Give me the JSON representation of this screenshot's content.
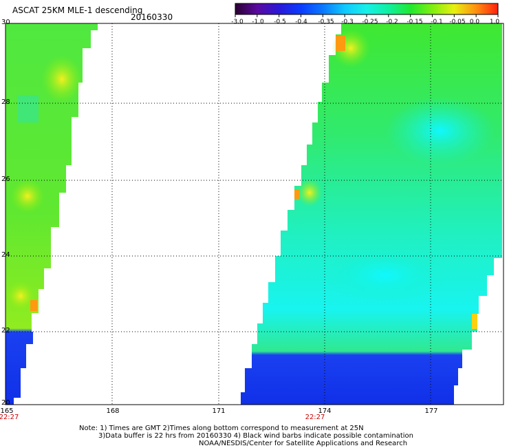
{
  "header": {
    "title": "ASCAT 25KM MLE-1 descending",
    "date": "20160330"
  },
  "colorbar": {
    "labels": [
      "-3.0",
      "-1.0",
      "-0.5",
      "-0.4",
      "-0.35",
      "-0.3",
      "-0.25",
      "-0.2",
      "-0.15",
      "-0.1",
      "-0.05",
      "0.0",
      "1.0"
    ],
    "colors": [
      "#2a0030",
      "#5a0aa0",
      "#2a18d8",
      "#0a3cff",
      "#0a78ff",
      "#10c8ff",
      "#18f0e8",
      "#10f0a0",
      "#20e830",
      "#80ee10",
      "#e8f010",
      "#ff9010",
      "#ff2010"
    ]
  },
  "axes": {
    "y_ticks": [
      "30",
      "28",
      "26",
      "24",
      "22",
      "20"
    ],
    "x_ticks": [
      "165",
      "168",
      "171",
      "174",
      "177"
    ]
  },
  "times": {
    "left": "22:27",
    "middle": "22:27"
  },
  "notes": {
    "line1": "Note: 1) Times are GMT 2)Times along bottom correspond to measurement at 25N",
    "line2": "3)Data buffer is 22 hrs from 20160330 4) Black wind barbs indicate possible contamination",
    "line3": "NOAA/NESDIS/Center for Satellite Applications and Research"
  }
}
